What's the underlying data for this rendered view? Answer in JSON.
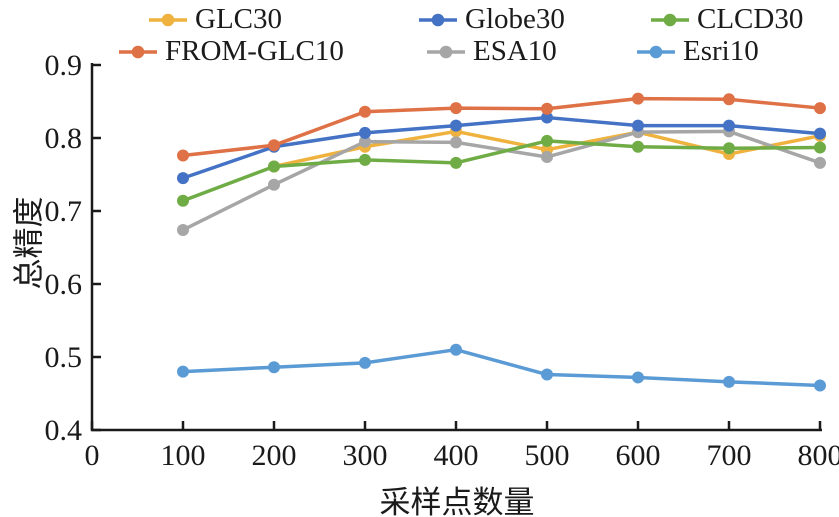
{
  "chart_data": {
    "type": "line",
    "x": [
      100,
      200,
      300,
      400,
      500,
      600,
      700,
      800
    ],
    "series": [
      {
        "name": "GLC30",
        "color": "#EFB23E",
        "values": [
          null,
          0.761,
          0.788,
          0.809,
          0.784,
          0.808,
          0.778,
          0.803
        ]
      },
      {
        "name": "ESA10",
        "color": "#A6A6A6",
        "values": [
          0.674,
          0.736,
          0.795,
          0.794,
          0.774,
          0.808,
          0.809,
          0.766
        ]
      },
      {
        "name": "CLCD30",
        "color": "#6FAC46",
        "values": [
          0.714,
          0.761,
          0.77,
          0.766,
          0.796,
          0.788,
          0.786,
          0.787
        ]
      },
      {
        "name": "Globe30",
        "color": "#4472C4",
        "values": [
          0.745,
          0.788,
          0.807,
          0.817,
          0.828,
          0.817,
          0.817,
          0.806
        ]
      },
      {
        "name": "FROM-GLC10",
        "color": "#DF7146",
        "values": [
          0.776,
          0.79,
          0.836,
          0.841,
          0.84,
          0.854,
          0.853,
          0.841
        ]
      },
      {
        "name": "Esri10",
        "color": "#5B9BD5",
        "values": [
          0.48,
          0.486,
          0.492,
          0.51,
          0.476,
          0.472,
          0.466,
          0.461
        ]
      }
    ],
    "legend_order": [
      "GLC30",
      "Globe30",
      "CLCD30",
      "FROM-GLC10",
      "ESA10",
      "Esri10"
    ],
    "legend_position": "top",
    "title": "",
    "xlabel": "采样点数量",
    "ylabel": "总精度",
    "xlim": [
      0,
      800
    ],
    "ylim": [
      0.4,
      0.9
    ],
    "xticks": [
      0,
      100,
      200,
      300,
      400,
      500,
      600,
      700,
      800
    ],
    "yticks": [
      0.4,
      0.5,
      0.6,
      0.7,
      0.8,
      0.9
    ],
    "grid": false,
    "axis_color": "#1a1a1a"
  }
}
